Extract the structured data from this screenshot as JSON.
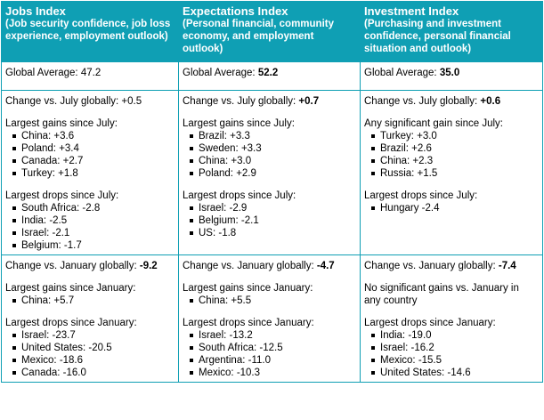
{
  "columns": [
    {
      "title": "Jobs Index",
      "subtitle": "(Job security confidence, job loss experience, employment outlook)",
      "avg_label": "Global Average: ",
      "avg_value": "47.2",
      "avg_bold": false,
      "july_change_label": "Change vs. July globally: ",
      "july_change_value": "+0.5",
      "july_bold": false,
      "july_gains_heading": "Largest gains since July:",
      "july_gains": [
        "China: +3.6",
        "Poland: +3.4",
        "Canada: +2.7",
        "Turkey: +1.8"
      ],
      "july_drops_heading": "Largest drops since July:",
      "july_drops": [
        "South Africa: -2.8",
        "India: -2.5",
        "Israel: -2.1",
        "Belgium: -1.7"
      ],
      "jan_change_label": "Change vs. January globally: ",
      "jan_change_value": "-9.2",
      "jan_bold": true,
      "jan_gains_heading": "Largest gains since January:",
      "jan_gains": [
        "China: +5.7"
      ],
      "jan_drops_heading": "Largest drops since January:",
      "jan_drops": [
        "Israel: -23.7",
        "United States: -20.5",
        "Mexico: -18.6",
        "Canada: -16.0"
      ]
    },
    {
      "title": "Expectations Index",
      "subtitle": "(Personal financial, community economy, and employment outlook)",
      "avg_label": "Global Average: ",
      "avg_value": "52.2",
      "avg_bold": true,
      "july_change_label": "Change vs. July globally: ",
      "july_change_value": "+0.7",
      "july_bold": true,
      "july_gains_heading": "Largest gains since July:",
      "july_gains": [
        "Brazil: +3.3",
        "Sweden: +3.3",
        "China: +3.0",
        "Poland: +2.9"
      ],
      "july_drops_heading": "Largest drops since July:",
      "july_drops": [
        "Israel: -2.9",
        "Belgium: -2.1",
        "US: -1.8"
      ],
      "jan_change_label": "Change vs. January globally: ",
      "jan_change_value": "-4.7",
      "jan_bold": true,
      "jan_gains_heading": "Largest gains since January:",
      "jan_gains": [
        "China: +5.5"
      ],
      "jan_drops_heading": "Largest drops since January:",
      "jan_drops": [
        "Israel: -13.2",
        "South Africa: -12.5",
        "Argentina: -11.0",
        "Mexico: -10.3"
      ]
    },
    {
      "title": "Investment Index",
      "subtitle": "(Purchasing and investment confidence, personal financial situation and outlook)",
      "avg_label": "Global Average: ",
      "avg_value": "35.0",
      "avg_bold": true,
      "july_change_label": "Change vs. July globally: ",
      "july_change_value": "+0.6",
      "july_bold": true,
      "july_gains_heading": "Any significant gain since July:",
      "july_gains": [
        "Turkey: +3.0",
        "Brazil: +2.6",
        "China: +2.3",
        "Russia: +1.5"
      ],
      "july_drops_heading": "Largest drops since July:",
      "july_drops": [
        "Hungary -2.4"
      ],
      "jan_change_label": "Change vs. January globally: ",
      "jan_change_value": "-7.4",
      "jan_bold": true,
      "jan_gains_heading": "No significant gains vs. January in any country",
      "jan_gains": [],
      "jan_drops_heading": "Largest drops since January:",
      "jan_drops": [
        "India: -19.0",
        "Israel: -16.2",
        "Mexico: -15.5",
        "United States: -14.6"
      ]
    }
  ]
}
